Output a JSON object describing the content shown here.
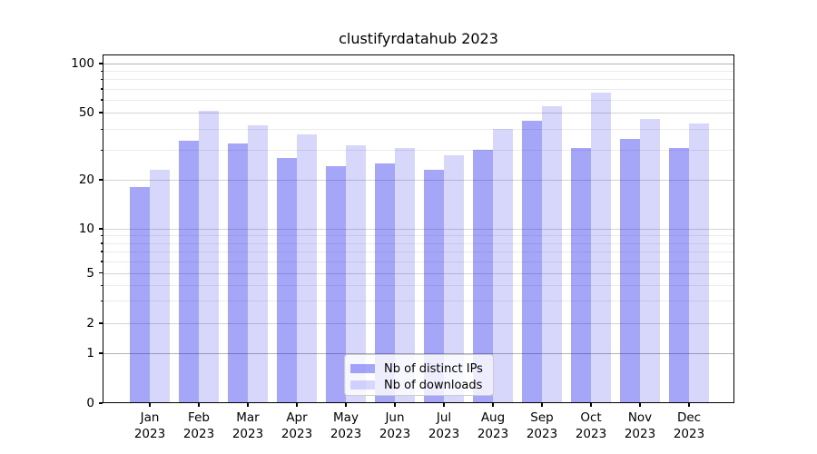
{
  "chart_data": {
    "type": "bar",
    "title": "clustifyrdatahub 2023",
    "categories": [
      "Jan",
      "Feb",
      "Mar",
      "Apr",
      "May",
      "Jun",
      "Jul",
      "Aug",
      "Sep",
      "Oct",
      "Nov",
      "Dec"
    ],
    "year_label": "2023",
    "series": [
      {
        "name": "Nb of distinct IPs",
        "color": "#a6a6f8",
        "fill": "rgba(8,8,238,0.36)",
        "values": [
          18,
          34,
          33,
          27,
          24,
          25,
          23,
          30,
          45,
          31,
          35,
          31
        ]
      },
      {
        "name": "Nb of downloads",
        "color": "#d9d9fb",
        "fill": "rgba(8,8,238,0.16)",
        "values": [
          23,
          51,
          42,
          37,
          32,
          31,
          28,
          40,
          55,
          66,
          46,
          43
        ]
      }
    ],
    "xlabel": "",
    "ylabel": "",
    "ylim": [
      0,
      114
    ],
    "yticks": [
      0,
      1,
      2,
      5,
      10,
      20,
      50,
      100
    ],
    "minor_yticks": [
      3,
      4,
      6,
      7,
      8,
      9,
      30,
      40,
      60,
      70,
      80,
      90
    ],
    "scale": "symlog",
    "grid": "on",
    "legend_position": "lower center"
  }
}
